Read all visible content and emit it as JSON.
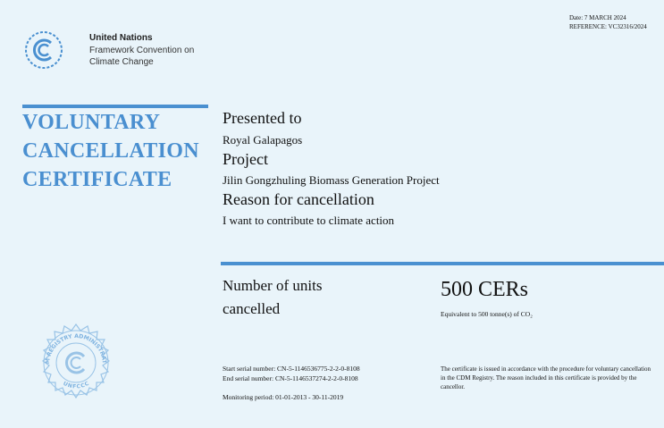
{
  "header": {
    "date": "Date: 7 MARCH 2024",
    "reference": "REFERENCE: VC32316/2024"
  },
  "logo": {
    "lines": [
      "United Nations",
      "Framework Convention on",
      "Climate Change"
    ]
  },
  "title": {
    "lines": [
      "VOLUNTARY",
      "CANCELLATION",
      "CERTIFICATE"
    ]
  },
  "fields": [
    {
      "label": "Presented to",
      "value": "Royal Galapagos"
    },
    {
      "label": "Project",
      "value": "Jilin Gongzhuling Biomass Generation Project"
    },
    {
      "label": "Reason for cancellation",
      "value": "I want to contribute to climate action"
    }
  ],
  "units": {
    "label_lines": [
      "Number of units",
      "cancelled"
    ],
    "amount": "500 CERs",
    "equivalent": "Equivalent to 500 tonne(s) of CO₂"
  },
  "serials": {
    "start": "Start serial number: CN-5-1146536775-2-2-0-8108",
    "end": "End serial number: CN-5-1146537274-2-2-0-8108",
    "monitoring": "Monitoring period: 01-01-2013 - 30-11-2019"
  },
  "note": "The certificate is issued in accordance with the procedure for voluntary cancellation in the CDM Registry. The reason included in this certificate is provided by the cancellor.",
  "seal": {
    "ring": "CDM REGISTRY ADMINISTRATOR",
    "bottom": "UNFCCC"
  }
}
